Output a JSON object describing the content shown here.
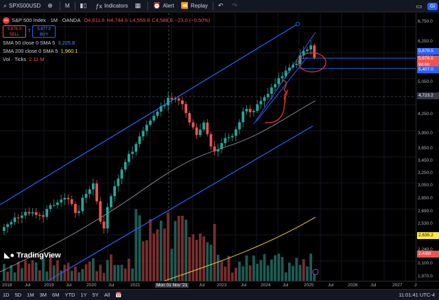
{
  "toolbar": {
    "symbol": "SPX500USD",
    "interval": "M",
    "indicators": "Indicators",
    "alert": "Alert",
    "replay": "Replay",
    "right_label": "Gi"
  },
  "legend": {
    "title": "S&P 500 Index · 1M · OANDA",
    "open": "O4,611.6",
    "high": "H4,744.6",
    "low": "L4,559.8",
    "close": "C4,588.6",
    "change": "−23.0 (−0.50%)",
    "sell_price": "5,676.3",
    "sell_label": "SELL",
    "spread": "7",
    "buy_price": "5,677.0",
    "buy_label": "BUY",
    "sma50_label": "SMA 50 close 0 SMA 5",
    "sma50_value": "3,225.8",
    "sma200_label": "SMA 200 close 0 SMA 5",
    "sma200_value": "1,960.1",
    "vol_label": "Vol · Ticks",
    "vol_value": "2.11 M"
  },
  "logo": {
    "text": "TradingView"
  },
  "price_axis": {
    "ticks": [
      "6,750.0",
      "6,250.0",
      "5,850.0",
      "5,450.0",
      "5,050.0",
      "4,650.0",
      "4,250.0",
      "3,950.0",
      "3,650.0",
      "3,450.0",
      "3,250.0",
      "3,050.0",
      "2,850.0",
      "2,690.0",
      "2,530.0",
      "2,380.0",
      "2,240.0",
      "2,100.0",
      "1,970.0"
    ],
    "tag_1": "5,679.5",
    "tag_2": "5,676.6",
    "tag_2b": "9d 6h",
    "tag_3": "5,407.0",
    "tag_4": "4,723.2",
    "tag_5": "2,635.2",
    "tag_6": "2.43M"
  },
  "time_axis": {
    "labels": [
      "2018",
      "Jul",
      "2019",
      "Jul",
      "2020",
      "Jul",
      "2021",
      "Mon 01 Nov '21",
      "Jul",
      "2023",
      "Jul",
      "2024",
      "Jul",
      "2025",
      "Jul",
      "2026",
      "Jul",
      "2027",
      "J"
    ]
  },
  "bottom": {
    "ranges": [
      "1D",
      "5D",
      "1M",
      "3M",
      "6M",
      "YTD",
      "1Y",
      "5Y",
      "All"
    ],
    "clock": "11:01:41 UTC-4"
  },
  "colors": {
    "up": "#26a69a",
    "down": "#ef5350",
    "channel": "#2962ff",
    "sma50": "#9598a1",
    "sma200": "#ffeb3b",
    "annotation": "#e53935"
  }
}
